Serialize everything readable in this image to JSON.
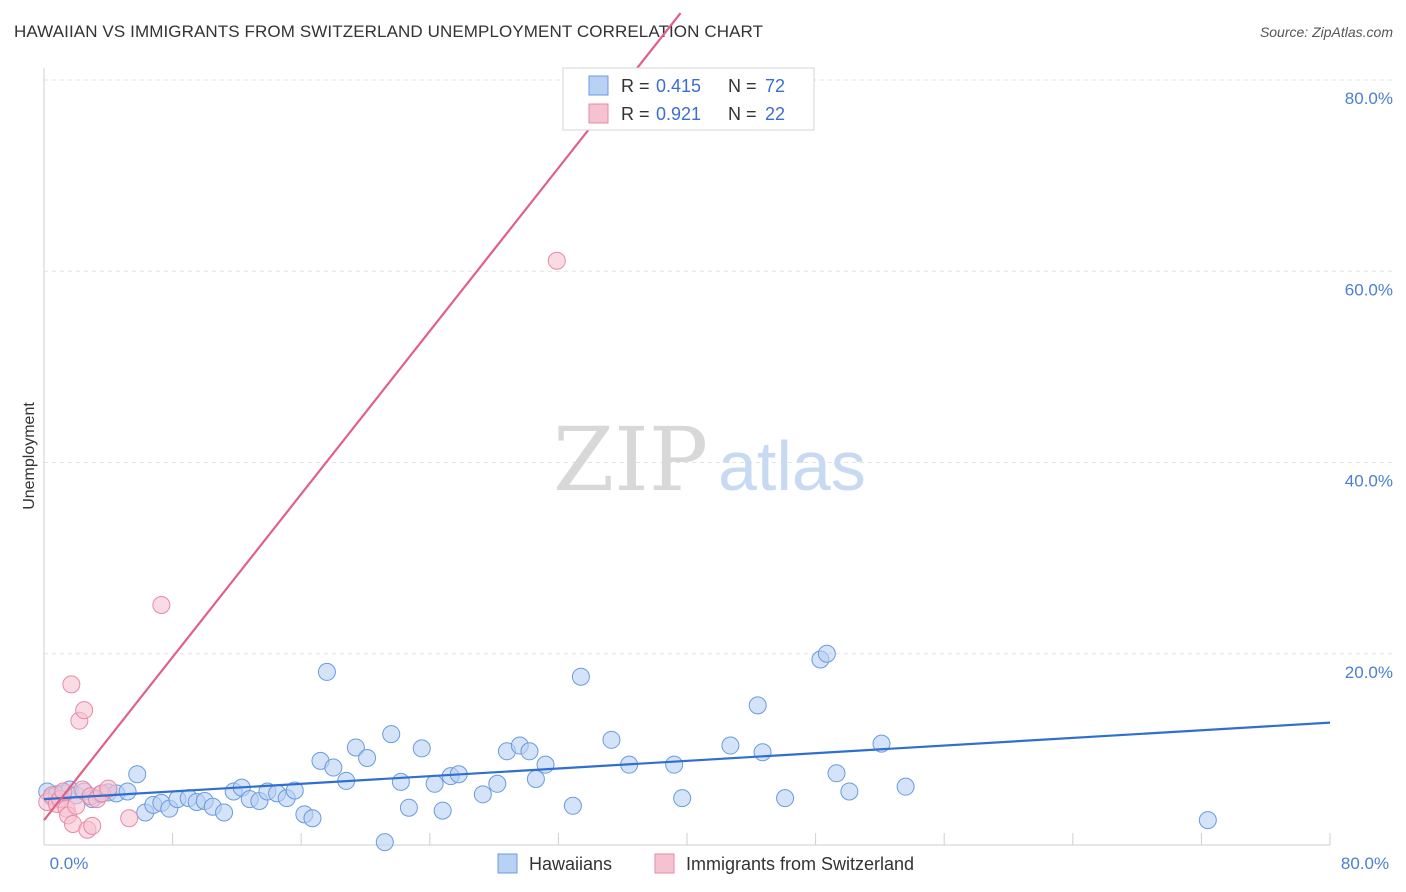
{
  "title": "HAWAIIAN VS IMMIGRANTS FROM SWITZERLAND UNEMPLOYMENT CORRELATION CHART",
  "source": "Source: ZipAtlas.com",
  "watermark": {
    "zip": "ZIP",
    "atlas": "atlas"
  },
  "legend": {
    "rows": [
      {
        "r_label": "R =",
        "r_value": "0.415",
        "n_label": "N =",
        "n_value": "72"
      },
      {
        "r_label": "R =",
        "r_value": "0.921",
        "n_label": "N =",
        "n_value": "22"
      }
    ]
  },
  "bottom_legend": [
    "Hawaiians",
    "Immigrants from Switzerland"
  ],
  "colors": {
    "blue_fill": "#b9d1f3",
    "blue_stroke": "#6a9be0",
    "blue_line": "#2f6fd0",
    "pink_fill": "#f6c2d1",
    "pink_stroke": "#e68aa6",
    "pink_line": "#e0608a",
    "grid": "#e3e3e3",
    "tick_text": "#4a7fd4"
  },
  "chart_data": {
    "type": "scatter",
    "title": "HAWAIIAN VS IMMIGRANTS FROM SWITZERLAND UNEMPLOYMENT CORRELATION CHART",
    "xlabel": "",
    "ylabel": "Unemployment",
    "xlim": [
      0,
      80
    ],
    "ylim": [
      0,
      80
    ],
    "x_tick_labels": [
      "0.0%",
      "80.0%"
    ],
    "y_ticks": [
      {
        "value": 20,
        "label": "20.0%"
      },
      {
        "value": 40,
        "label": "40.0%"
      },
      {
        "value": 60,
        "label": "60.0%"
      },
      {
        "value": 80,
        "label": "80.0%"
      }
    ],
    "grid": true,
    "legend_position": "top-center",
    "series": [
      {
        "name": "Hawaiians",
        "color": "#6a9be0",
        "trend": {
          "x": [
            0,
            80
          ],
          "y": [
            4.8,
            12.8
          ]
        },
        "points": [
          [
            0.2,
            5.6
          ],
          [
            0.5,
            5.0
          ],
          [
            0.8,
            5.3
          ],
          [
            1.2,
            5.4
          ],
          [
            1.6,
            5.8
          ],
          [
            2.0,
            5.2
          ],
          [
            2.5,
            5.6
          ],
          [
            3.0,
            4.8
          ],
          [
            3.5,
            5.3
          ],
          [
            4.0,
            5.5
          ],
          [
            4.5,
            5.4
          ],
          [
            5.2,
            5.6
          ],
          [
            5.8,
            7.4
          ],
          [
            6.3,
            3.4
          ],
          [
            6.8,
            4.2
          ],
          [
            7.3,
            4.4
          ],
          [
            7.8,
            3.8
          ],
          [
            8.3,
            4.8
          ],
          [
            9.0,
            4.9
          ],
          [
            9.5,
            4.5
          ],
          [
            10.0,
            4.6
          ],
          [
            10.5,
            4.0
          ],
          [
            11.2,
            3.4
          ],
          [
            11.8,
            5.6
          ],
          [
            12.3,
            6.0
          ],
          [
            12.8,
            4.8
          ],
          [
            13.4,
            4.6
          ],
          [
            13.9,
            5.6
          ],
          [
            14.5,
            5.4
          ],
          [
            15.1,
            4.9
          ],
          [
            15.6,
            5.7
          ],
          [
            16.2,
            3.2
          ],
          [
            16.7,
            2.8
          ],
          [
            17.2,
            8.8
          ],
          [
            17.6,
            18.1
          ],
          [
            18.0,
            8.1
          ],
          [
            18.8,
            6.7
          ],
          [
            19.4,
            10.2
          ],
          [
            20.1,
            9.1
          ],
          [
            21.2,
            0.3
          ],
          [
            21.6,
            11.6
          ],
          [
            22.2,
            6.6
          ],
          [
            22.7,
            3.9
          ],
          [
            23.5,
            10.1
          ],
          [
            24.3,
            6.4
          ],
          [
            24.8,
            3.6
          ],
          [
            25.3,
            7.2
          ],
          [
            25.8,
            7.4
          ],
          [
            27.3,
            5.3
          ],
          [
            28.2,
            6.4
          ],
          [
            28.8,
            9.8
          ],
          [
            29.6,
            10.4
          ],
          [
            30.2,
            9.8
          ],
          [
            30.6,
            6.9
          ],
          [
            31.2,
            8.4
          ],
          [
            32.9,
            4.1
          ],
          [
            33.4,
            17.6
          ],
          [
            35.3,
            11.0
          ],
          [
            36.4,
            8.4
          ],
          [
            39.2,
            8.4
          ],
          [
            39.7,
            4.9
          ],
          [
            42.7,
            10.4
          ],
          [
            44.4,
            14.6
          ],
          [
            44.7,
            9.7
          ],
          [
            46.1,
            4.9
          ],
          [
            48.3,
            19.4
          ],
          [
            48.7,
            20.0
          ],
          [
            49.3,
            7.5
          ],
          [
            50.1,
            5.6
          ],
          [
            52.1,
            10.6
          ],
          [
            53.6,
            6.1
          ],
          [
            72.4,
            2.6
          ]
        ]
      },
      {
        "name": "Immigrants from Switzerland",
        "color": "#e68aa6",
        "trend": {
          "x": [
            0,
            39.6
          ],
          "y": [
            2.6,
            87.0
          ]
        },
        "points": [
          [
            0.2,
            4.5
          ],
          [
            0.5,
            5.2
          ],
          [
            0.8,
            4.3
          ],
          [
            1.0,
            4.8
          ],
          [
            1.2,
            5.6
          ],
          [
            1.4,
            3.8
          ],
          [
            1.5,
            3.1
          ],
          [
            1.7,
            16.8
          ],
          [
            1.8,
            2.2
          ],
          [
            2.0,
            4.1
          ],
          [
            2.2,
            13.0
          ],
          [
            2.4,
            5.8
          ],
          [
            2.5,
            14.1
          ],
          [
            2.7,
            1.6
          ],
          [
            2.9,
            5.1
          ],
          [
            3.0,
            2.0
          ],
          [
            3.3,
            4.8
          ],
          [
            3.6,
            5.4
          ],
          [
            4.0,
            5.9
          ],
          [
            5.3,
            2.8
          ],
          [
            7.3,
            25.1
          ],
          [
            31.9,
            61.1
          ]
        ]
      }
    ]
  }
}
